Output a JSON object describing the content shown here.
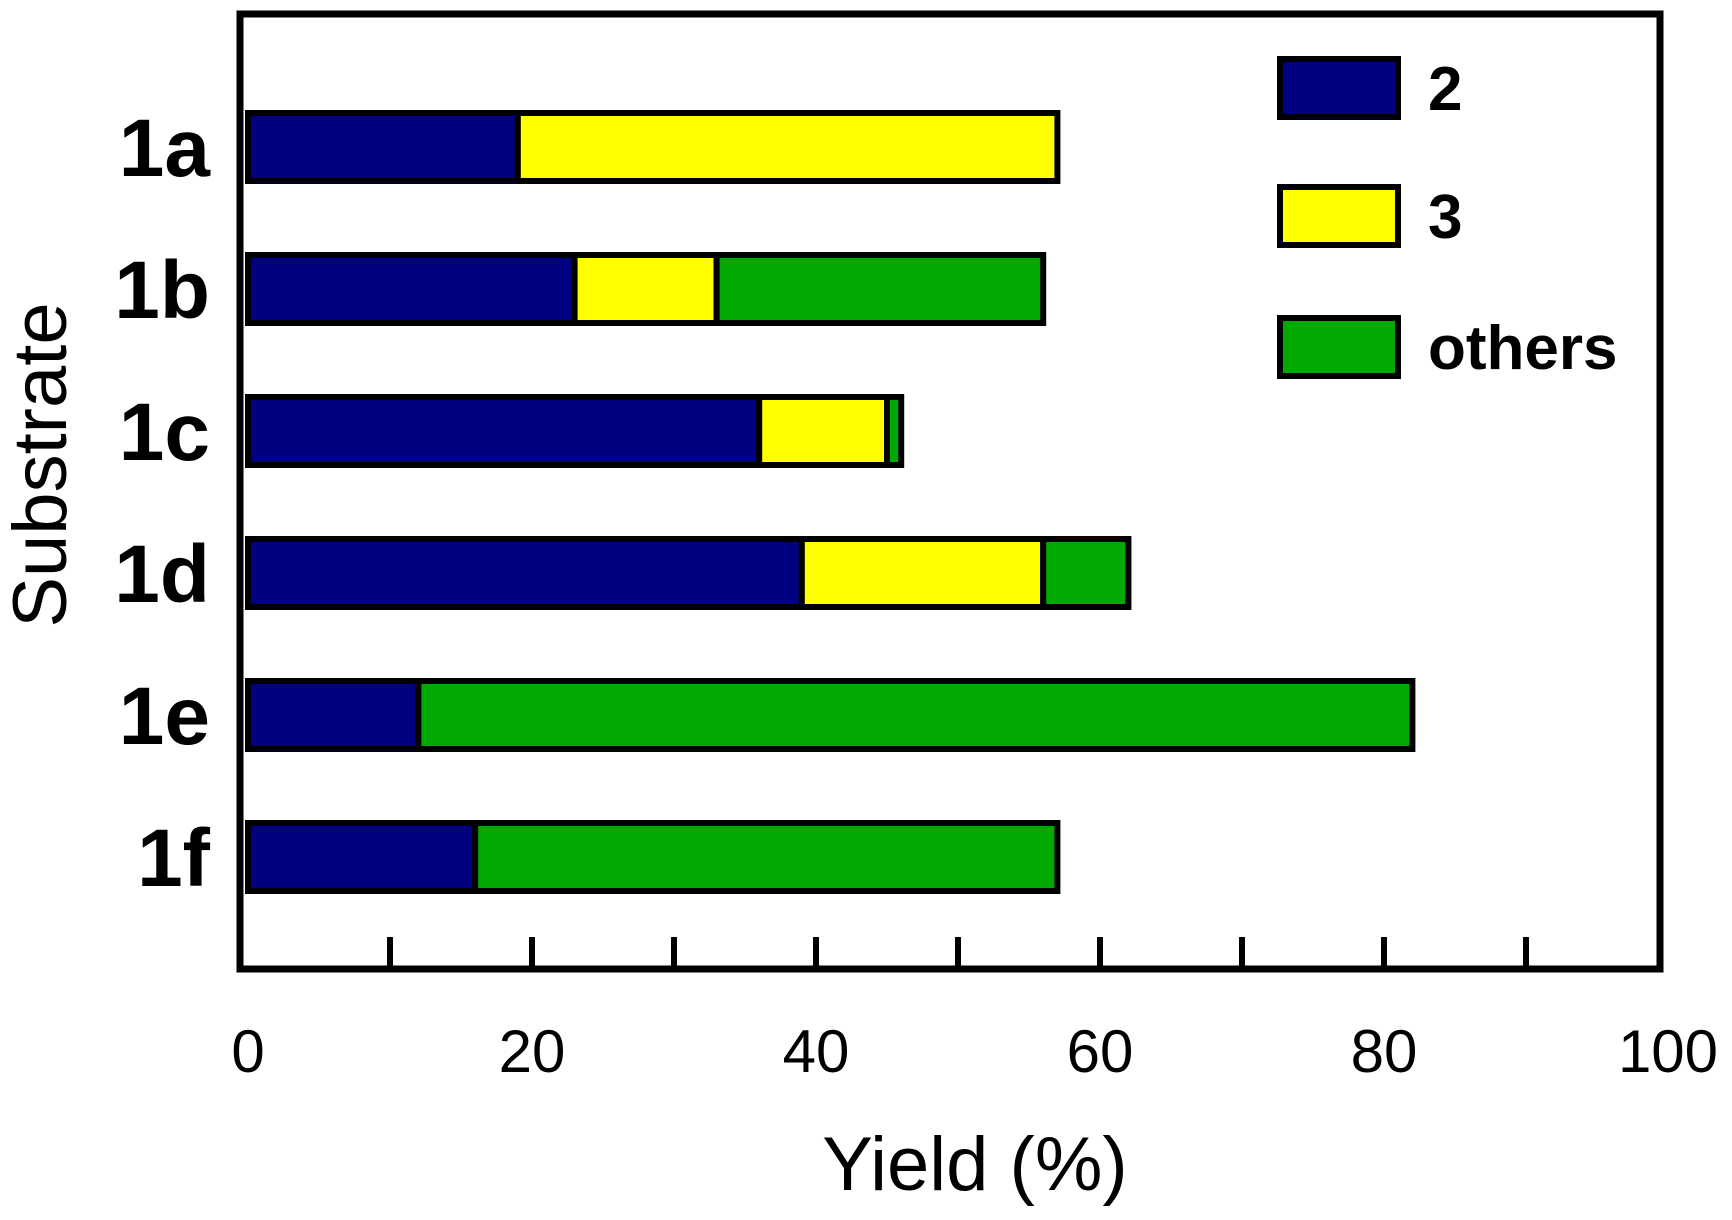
{
  "chart_data": {
    "type": "bar",
    "orientation": "horizontal",
    "stacked": true,
    "categories": [
      "1a",
      "1b",
      "1c",
      "1d",
      "1e",
      "1f"
    ],
    "series": [
      {
        "name": "2",
        "color": "#000080",
        "values": [
          19,
          23,
          36,
          39,
          12,
          16
        ]
      },
      {
        "name": "3",
        "color": "#ffff00",
        "values": [
          38,
          10,
          9,
          17,
          0,
          0
        ]
      },
      {
        "name": "others",
        "color": "#00aa00",
        "values": [
          0,
          23,
          1,
          6,
          70,
          41
        ]
      }
    ],
    "title": "",
    "xlabel": "Yield (%)",
    "ylabel": "Substrate",
    "xlim": [
      0,
      100
    ],
    "xticks": [
      0,
      20,
      40,
      60,
      80,
      100
    ],
    "minor_ticks": [
      10,
      30,
      50,
      70,
      90
    ],
    "grid": false,
    "legend": "top-right"
  }
}
